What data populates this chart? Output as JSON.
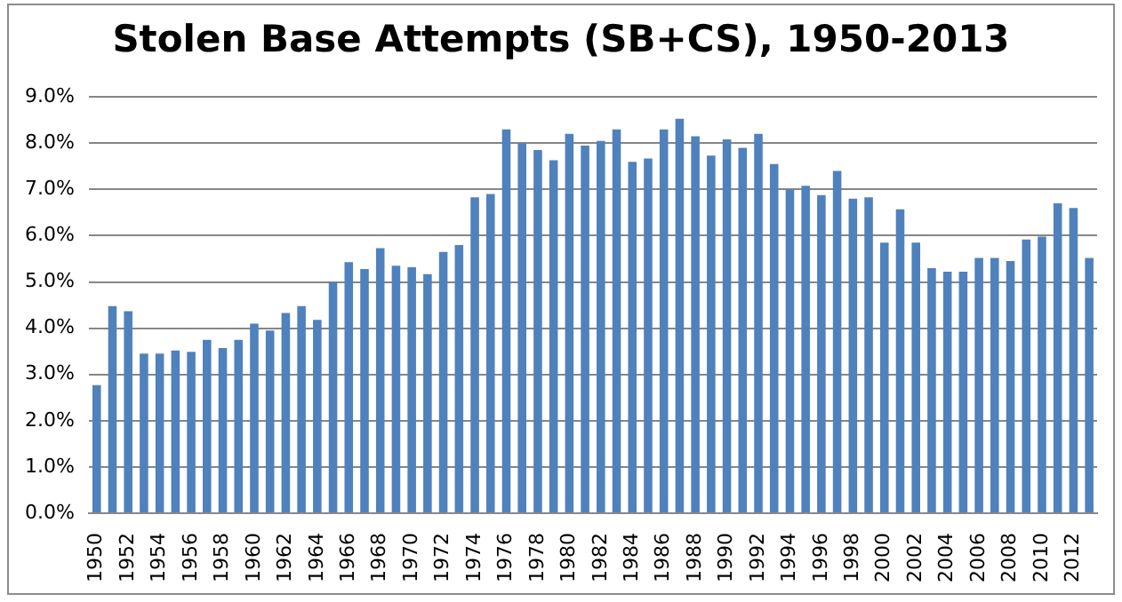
{
  "chart_data": {
    "type": "bar",
    "title": "Stolen Base Attempts (SB+CS), 1950-2013",
    "categories": [
      "1950",
      null,
      "1952",
      null,
      "1954",
      null,
      "1956",
      null,
      "1958",
      null,
      "1960",
      null,
      "1962",
      null,
      "1964",
      null,
      "1966",
      null,
      "1968",
      null,
      "1970",
      null,
      "1972",
      null,
      "1974",
      null,
      "1976",
      null,
      "1978",
      null,
      "1980",
      null,
      "1982",
      null,
      "1984",
      null,
      "1986",
      null,
      "1988",
      null,
      "1990",
      null,
      "1992",
      null,
      "1994",
      null,
      "1996",
      null,
      "1998",
      null,
      "2000",
      null,
      "2002",
      null,
      "2004",
      null,
      "2006",
      null,
      "2008",
      null,
      "2010",
      null,
      "2012",
      null
    ],
    "values": [
      2.77,
      4.48,
      4.37,
      3.45,
      3.45,
      3.52,
      3.49,
      3.75,
      3.57,
      3.75,
      4.1,
      3.95,
      4.33,
      4.48,
      4.18,
      5.0,
      5.43,
      5.28,
      5.73,
      5.35,
      5.32,
      5.17,
      5.65,
      5.8,
      6.83,
      6.9,
      8.3,
      8.0,
      7.85,
      7.63,
      8.2,
      7.95,
      8.05,
      8.3,
      7.6,
      7.67,
      8.3,
      8.53,
      8.15,
      7.73,
      8.08,
      7.9,
      8.2,
      7.55,
      7.0,
      7.08,
      6.88,
      7.4,
      6.8,
      6.83,
      5.85,
      6.57,
      5.85,
      5.3,
      5.22,
      5.22,
      5.52,
      5.52,
      5.45,
      5.92,
      5.98,
      6.7,
      6.6,
      5.52
    ],
    "color": "#4f81bd",
    "ylim": [
      0,
      9
    ],
    "yticks": [
      {
        "value": 0,
        "label": "0.0%"
      },
      {
        "value": 1,
        "label": "1.0%"
      },
      {
        "value": 2,
        "label": "2.0%"
      },
      {
        "value": 3,
        "label": "3.0%"
      },
      {
        "value": 4,
        "label": "4.0%"
      },
      {
        "value": 5,
        "label": "5.0%"
      },
      {
        "value": 6,
        "label": "6.0%"
      },
      {
        "value": 7,
        "label": "7.0%"
      },
      {
        "value": 8,
        "label": "8.0%"
      },
      {
        "value": 9,
        "label": "9.0%"
      }
    ],
    "grid": "y",
    "legend": false
  }
}
